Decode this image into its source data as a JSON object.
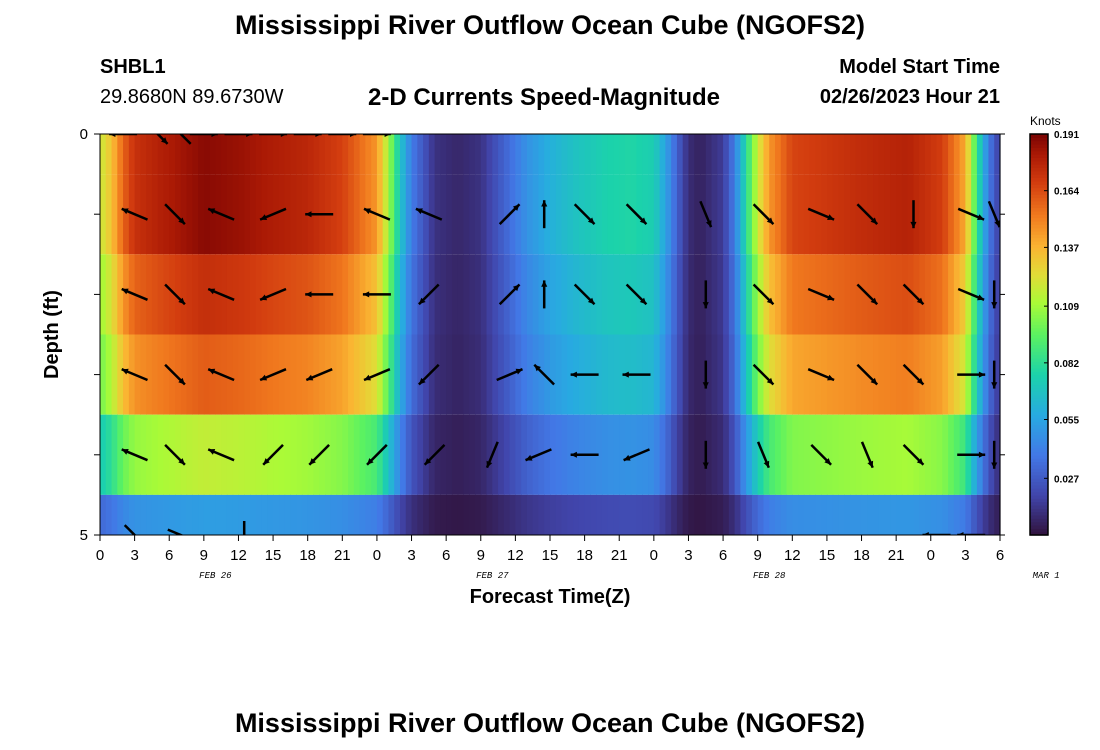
{
  "titles": {
    "main": "Mississippi River Outflow Ocean Cube (NGOFS2)",
    "repeat": "Mississippi River Outflow Ocean Cube (NGOFS2)"
  },
  "station": {
    "id": "SHBL1",
    "coords": "29.8680N  89.6730W"
  },
  "subtitle": "2-D Currents Speed-Magnitude",
  "model_start": {
    "label": "Model Start Time",
    "value": "02/26/2023 Hour 21"
  },
  "chart_data": {
    "type": "heatmap",
    "xlabel": "Forecast Time(Z)",
    "ylabel": "Depth (ft)",
    "x_range_hours": [
      0,
      78
    ],
    "y_range_ft": [
      0,
      5
    ],
    "x_tick_labels": [
      "0",
      "3",
      "6",
      "9",
      "12",
      "15",
      "18",
      "21",
      "0",
      "3",
      "6",
      "9",
      "12",
      "15",
      "18",
      "21",
      "0",
      "3",
      "6",
      "9",
      "12",
      "15",
      "18",
      "21",
      "0",
      "3",
      "6"
    ],
    "date_labels": [
      {
        "text": "FEB 26",
        "hour": 10
      },
      {
        "text": "FEB 27",
        "hour": 34
      },
      {
        "text": "FEB 28",
        "hour": 58
      },
      {
        "text": "MAR 1",
        "hour": 82
      }
    ],
    "y_tick_labels": [
      {
        "value": 0,
        "label": "0"
      },
      {
        "value": 1,
        "label": ""
      },
      {
        "value": 2,
        "label": ""
      },
      {
        "value": 3,
        "label": ""
      },
      {
        "value": 4,
        "label": ""
      },
      {
        "value": 5,
        "label": "5"
      }
    ],
    "colorbar": {
      "unit": "Knots",
      "ticks": [
        "0.191",
        "0.164",
        "0.137",
        "0.109",
        "0.082",
        "0.055",
        "0.027"
      ],
      "tick_values": [
        0.191,
        0.164,
        0.137,
        0.109,
        0.082,
        0.055,
        0.027
      ],
      "min": 0.0,
      "max": 0.191
    },
    "time_profile": {
      "hours": [
        0,
        1,
        2,
        3,
        5,
        7,
        9,
        12,
        15,
        18,
        21,
        24,
        25,
        26,
        27,
        29,
        31,
        33,
        35,
        37,
        39,
        41,
        44,
        46,
        48,
        49,
        50,
        51,
        52,
        54,
        55,
        56,
        57,
        58,
        60,
        63,
        66,
        70,
        73,
        75,
        76,
        77,
        78
      ],
      "speed_knots": [
        0.118,
        0.133,
        0.158,
        0.172,
        0.178,
        0.183,
        0.188,
        0.185,
        0.18,
        0.176,
        0.167,
        0.145,
        0.11,
        0.07,
        0.04,
        0.012,
        0.008,
        0.012,
        0.03,
        0.048,
        0.06,
        0.068,
        0.076,
        0.078,
        0.074,
        0.055,
        0.03,
        0.01,
        0.006,
        0.016,
        0.04,
        0.08,
        0.118,
        0.145,
        0.166,
        0.17,
        0.174,
        0.178,
        0.168,
        0.14,
        0.085,
        0.04,
        0.015
      ]
    },
    "depth_factor": [
      1.0,
      1.0,
      0.92,
      0.85,
      0.62,
      0.28
    ],
    "vectors": [
      {
        "hour": 2,
        "layer": 0,
        "dir": "W"
      },
      {
        "hour": 5,
        "layer": 0,
        "dir": "SE"
      },
      {
        "hour": 7,
        "layer": 0,
        "dir": "NW"
      },
      {
        "hour": 9,
        "layer": 0,
        "dir": "E"
      },
      {
        "hour": 12,
        "layer": 0,
        "dir": "E"
      },
      {
        "hour": 15,
        "layer": 0,
        "dir": "E"
      },
      {
        "hour": 18,
        "layer": 0,
        "dir": "E"
      },
      {
        "hour": 21,
        "layer": 0,
        "dir": "E"
      },
      {
        "hour": 24,
        "layer": 0,
        "dir": "E"
      },
      {
        "hour": 3,
        "layer": 1,
        "dir": "WNW"
      },
      {
        "hour": 6.5,
        "layer": 1,
        "dir": "SE"
      },
      {
        "hour": 10.5,
        "layer": 1,
        "dir": "WNW"
      },
      {
        "hour": 15,
        "layer": 1,
        "dir": "WSW"
      },
      {
        "hour": 19,
        "layer": 1,
        "dir": "W"
      },
      {
        "hour": 24,
        "layer": 1,
        "dir": "WNW"
      },
      {
        "hour": 28.5,
        "layer": 1,
        "dir": "WNW"
      },
      {
        "hour": 35.5,
        "layer": 1,
        "dir": "NE"
      },
      {
        "hour": 38.5,
        "layer": 1,
        "dir": "N"
      },
      {
        "hour": 42,
        "layer": 1,
        "dir": "SE"
      },
      {
        "hour": 46.5,
        "layer": 1,
        "dir": "SE"
      },
      {
        "hour": 52.5,
        "layer": 1,
        "dir": "SSE"
      },
      {
        "hour": 57.5,
        "layer": 1,
        "dir": "SE"
      },
      {
        "hour": 62.5,
        "layer": 1,
        "dir": "ESE"
      },
      {
        "hour": 66.5,
        "layer": 1,
        "dir": "SE"
      },
      {
        "hour": 70.5,
        "layer": 1,
        "dir": "S"
      },
      {
        "hour": 75.5,
        "layer": 1,
        "dir": "ESE"
      },
      {
        "hour": 77.5,
        "layer": 1,
        "dir": "SSE"
      },
      {
        "hour": 3,
        "layer": 2,
        "dir": "WNW"
      },
      {
        "hour": 6.5,
        "layer": 2,
        "dir": "SE"
      },
      {
        "hour": 10.5,
        "layer": 2,
        "dir": "WNW"
      },
      {
        "hour": 15,
        "layer": 2,
        "dir": "WSW"
      },
      {
        "hour": 19,
        "layer": 2,
        "dir": "W"
      },
      {
        "hour": 24,
        "layer": 2,
        "dir": "W"
      },
      {
        "hour": 28.5,
        "layer": 2,
        "dir": "SW"
      },
      {
        "hour": 35.5,
        "layer": 2,
        "dir": "NE"
      },
      {
        "hour": 38.5,
        "layer": 2,
        "dir": "N"
      },
      {
        "hour": 42,
        "layer": 2,
        "dir": "SE"
      },
      {
        "hour": 46.5,
        "layer": 2,
        "dir": "SE"
      },
      {
        "hour": 52.5,
        "layer": 2,
        "dir": "S"
      },
      {
        "hour": 57.5,
        "layer": 2,
        "dir": "SE"
      },
      {
        "hour": 62.5,
        "layer": 2,
        "dir": "ESE"
      },
      {
        "hour": 66.5,
        "layer": 2,
        "dir": "SE"
      },
      {
        "hour": 70.5,
        "layer": 2,
        "dir": "SE"
      },
      {
        "hour": 75.5,
        "layer": 2,
        "dir": "ESE"
      },
      {
        "hour": 77.5,
        "layer": 2,
        "dir": "S"
      },
      {
        "hour": 3,
        "layer": 3,
        "dir": "WNW"
      },
      {
        "hour": 6.5,
        "layer": 3,
        "dir": "SE"
      },
      {
        "hour": 10.5,
        "layer": 3,
        "dir": "WNW"
      },
      {
        "hour": 15,
        "layer": 3,
        "dir": "WSW"
      },
      {
        "hour": 19,
        "layer": 3,
        "dir": "WSW"
      },
      {
        "hour": 24,
        "layer": 3,
        "dir": "WSW"
      },
      {
        "hour": 28.5,
        "layer": 3,
        "dir": "SW"
      },
      {
        "hour": 35.5,
        "layer": 3,
        "dir": "ENE"
      },
      {
        "hour": 38.5,
        "layer": 3,
        "dir": "NW"
      },
      {
        "hour": 42,
        "layer": 3,
        "dir": "W"
      },
      {
        "hour": 46.5,
        "layer": 3,
        "dir": "W"
      },
      {
        "hour": 52.5,
        "layer": 3,
        "dir": "S"
      },
      {
        "hour": 57.5,
        "layer": 3,
        "dir": "SE"
      },
      {
        "hour": 62.5,
        "layer": 3,
        "dir": "ESE"
      },
      {
        "hour": 66.5,
        "layer": 3,
        "dir": "SE"
      },
      {
        "hour": 70.5,
        "layer": 3,
        "dir": "SE"
      },
      {
        "hour": 75.5,
        "layer": 3,
        "dir": "E"
      },
      {
        "hour": 77.5,
        "layer": 3,
        "dir": "S"
      },
      {
        "hour": 3,
        "layer": 4,
        "dir": "WNW"
      },
      {
        "hour": 6.5,
        "layer": 4,
        "dir": "SE"
      },
      {
        "hour": 10.5,
        "layer": 4,
        "dir": "WNW"
      },
      {
        "hour": 15,
        "layer": 4,
        "dir": "SW"
      },
      {
        "hour": 19,
        "layer": 4,
        "dir": "SW"
      },
      {
        "hour": 24,
        "layer": 4,
        "dir": "SW"
      },
      {
        "hour": 29,
        "layer": 4,
        "dir": "SW"
      },
      {
        "hour": 34,
        "layer": 4,
        "dir": "SSW"
      },
      {
        "hour": 38,
        "layer": 4,
        "dir": "WSW"
      },
      {
        "hour": 42,
        "layer": 4,
        "dir": "W"
      },
      {
        "hour": 46.5,
        "layer": 4,
        "dir": "WSW"
      },
      {
        "hour": 52.5,
        "layer": 4,
        "dir": "S"
      },
      {
        "hour": 57.5,
        "layer": 4,
        "dir": "SSE"
      },
      {
        "hour": 62.5,
        "layer": 4,
        "dir": "SE"
      },
      {
        "hour": 66.5,
        "layer": 4,
        "dir": "SSE"
      },
      {
        "hour": 70.5,
        "layer": 4,
        "dir": "SE"
      },
      {
        "hour": 75.5,
        "layer": 4,
        "dir": "E"
      },
      {
        "hour": 77.5,
        "layer": 4,
        "dir": "S"
      },
      {
        "hour": 3,
        "layer": 5,
        "dir": "SE"
      },
      {
        "hour": 7,
        "layer": 5,
        "dir": "ESE"
      },
      {
        "hour": 12.5,
        "layer": 5,
        "dir": "S"
      },
      {
        "hour": 72.5,
        "layer": 5,
        "dir": "W"
      },
      {
        "hour": 75.5,
        "layer": 5,
        "dir": "W"
      }
    ]
  }
}
